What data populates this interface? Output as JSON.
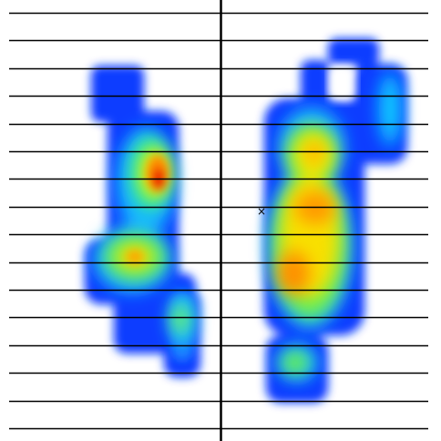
{
  "view": {
    "background_color": "#ffffff",
    "line_color": "#000000"
  },
  "reference_lines": {
    "count": 16,
    "orientation": "horizontal"
  },
  "center_marker": {
    "glyph": "×",
    "icon": "x-mark-icon"
  },
  "pressure_map": {
    "colormap": "jet",
    "palette": [
      "#0000ff",
      "#0080ff",
      "#00e0ff",
      "#30ff70",
      "#c0ff00",
      "#ffee00",
      "#ff9900",
      "#ff3300",
      "#e00000"
    ],
    "regions": [
      {
        "name": "left-foot",
        "peak_color": "#e00000"
      },
      {
        "name": "right-foot",
        "peak_color": "#ff9900"
      }
    ]
  }
}
